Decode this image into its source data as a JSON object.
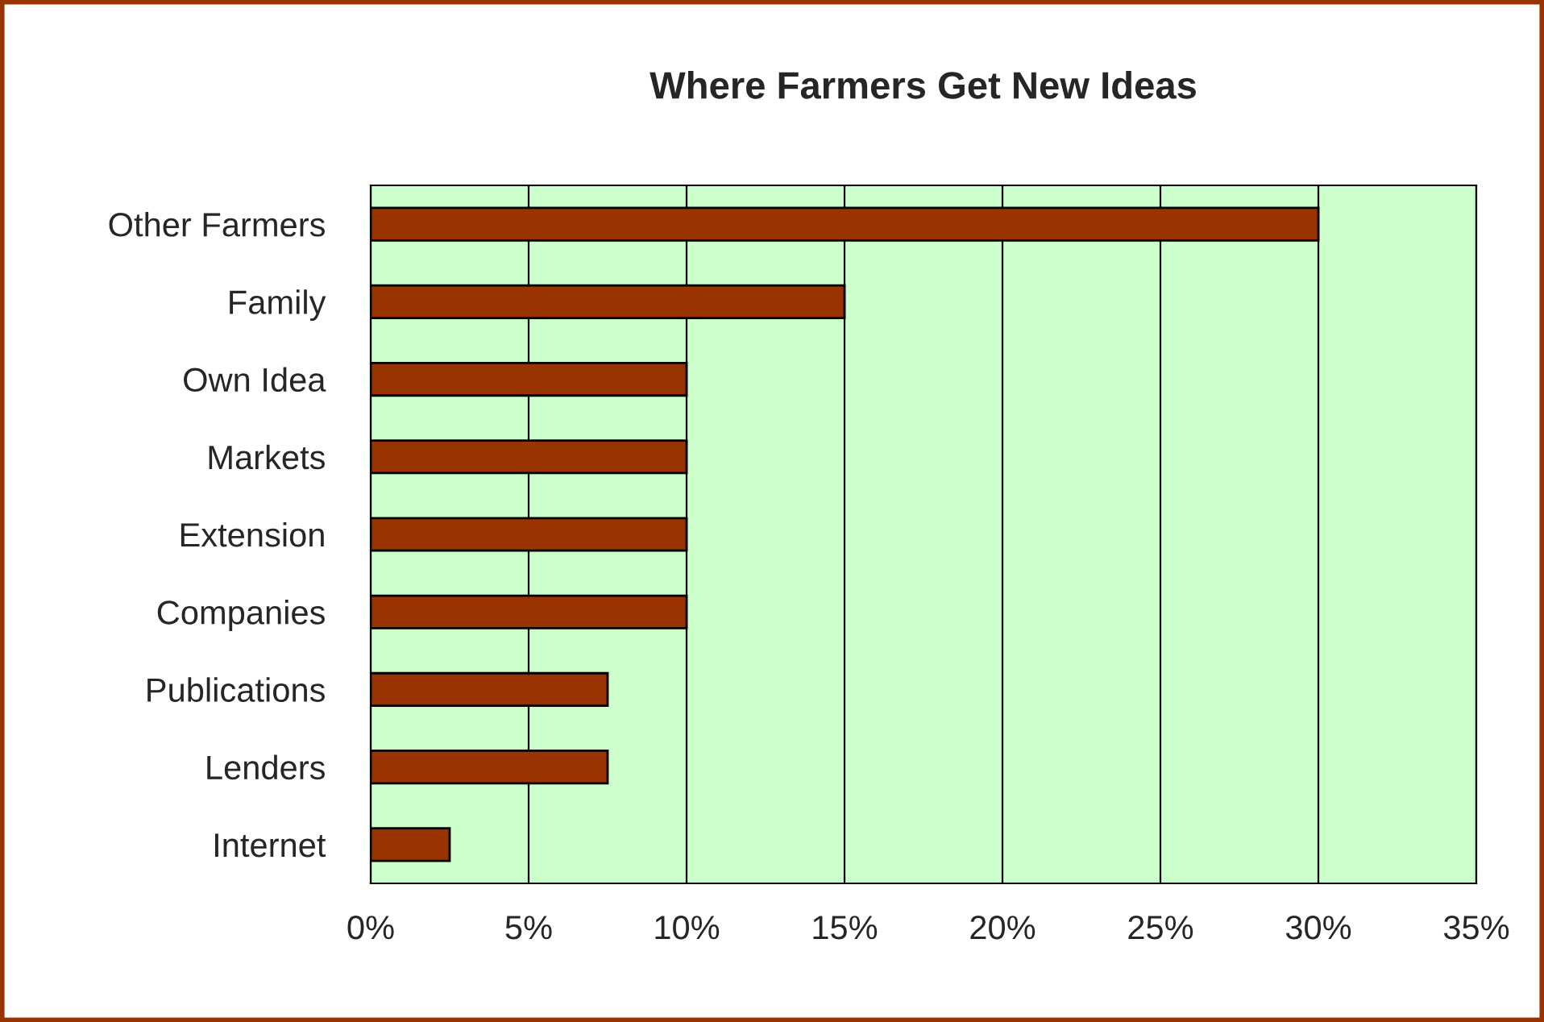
{
  "chart_data": {
    "type": "bar",
    "orientation": "horizontal",
    "title": "Where Farmers Get New Ideas",
    "categories": [
      "Other Farmers",
      "Family",
      "Own Idea",
      "Markets",
      "Extension",
      "Companies",
      "Publications",
      "Lenders",
      "Internet"
    ],
    "values": [
      30,
      15,
      10,
      10,
      10,
      10,
      7.5,
      7.5,
      2.5
    ],
    "color": "#993300",
    "xlim": [
      0,
      35
    ],
    "xticks": [
      {
        "value": 0,
        "label": "0%"
      },
      {
        "value": 5,
        "label": "5%"
      },
      {
        "value": 10,
        "label": "10%"
      },
      {
        "value": 15,
        "label": "15%"
      },
      {
        "value": 20,
        "label": "20%"
      },
      {
        "value": 25,
        "label": "25%"
      },
      {
        "value": 30,
        "label": "30%"
      },
      {
        "value": 35,
        "label": "35%"
      }
    ],
    "grid": "x"
  }
}
